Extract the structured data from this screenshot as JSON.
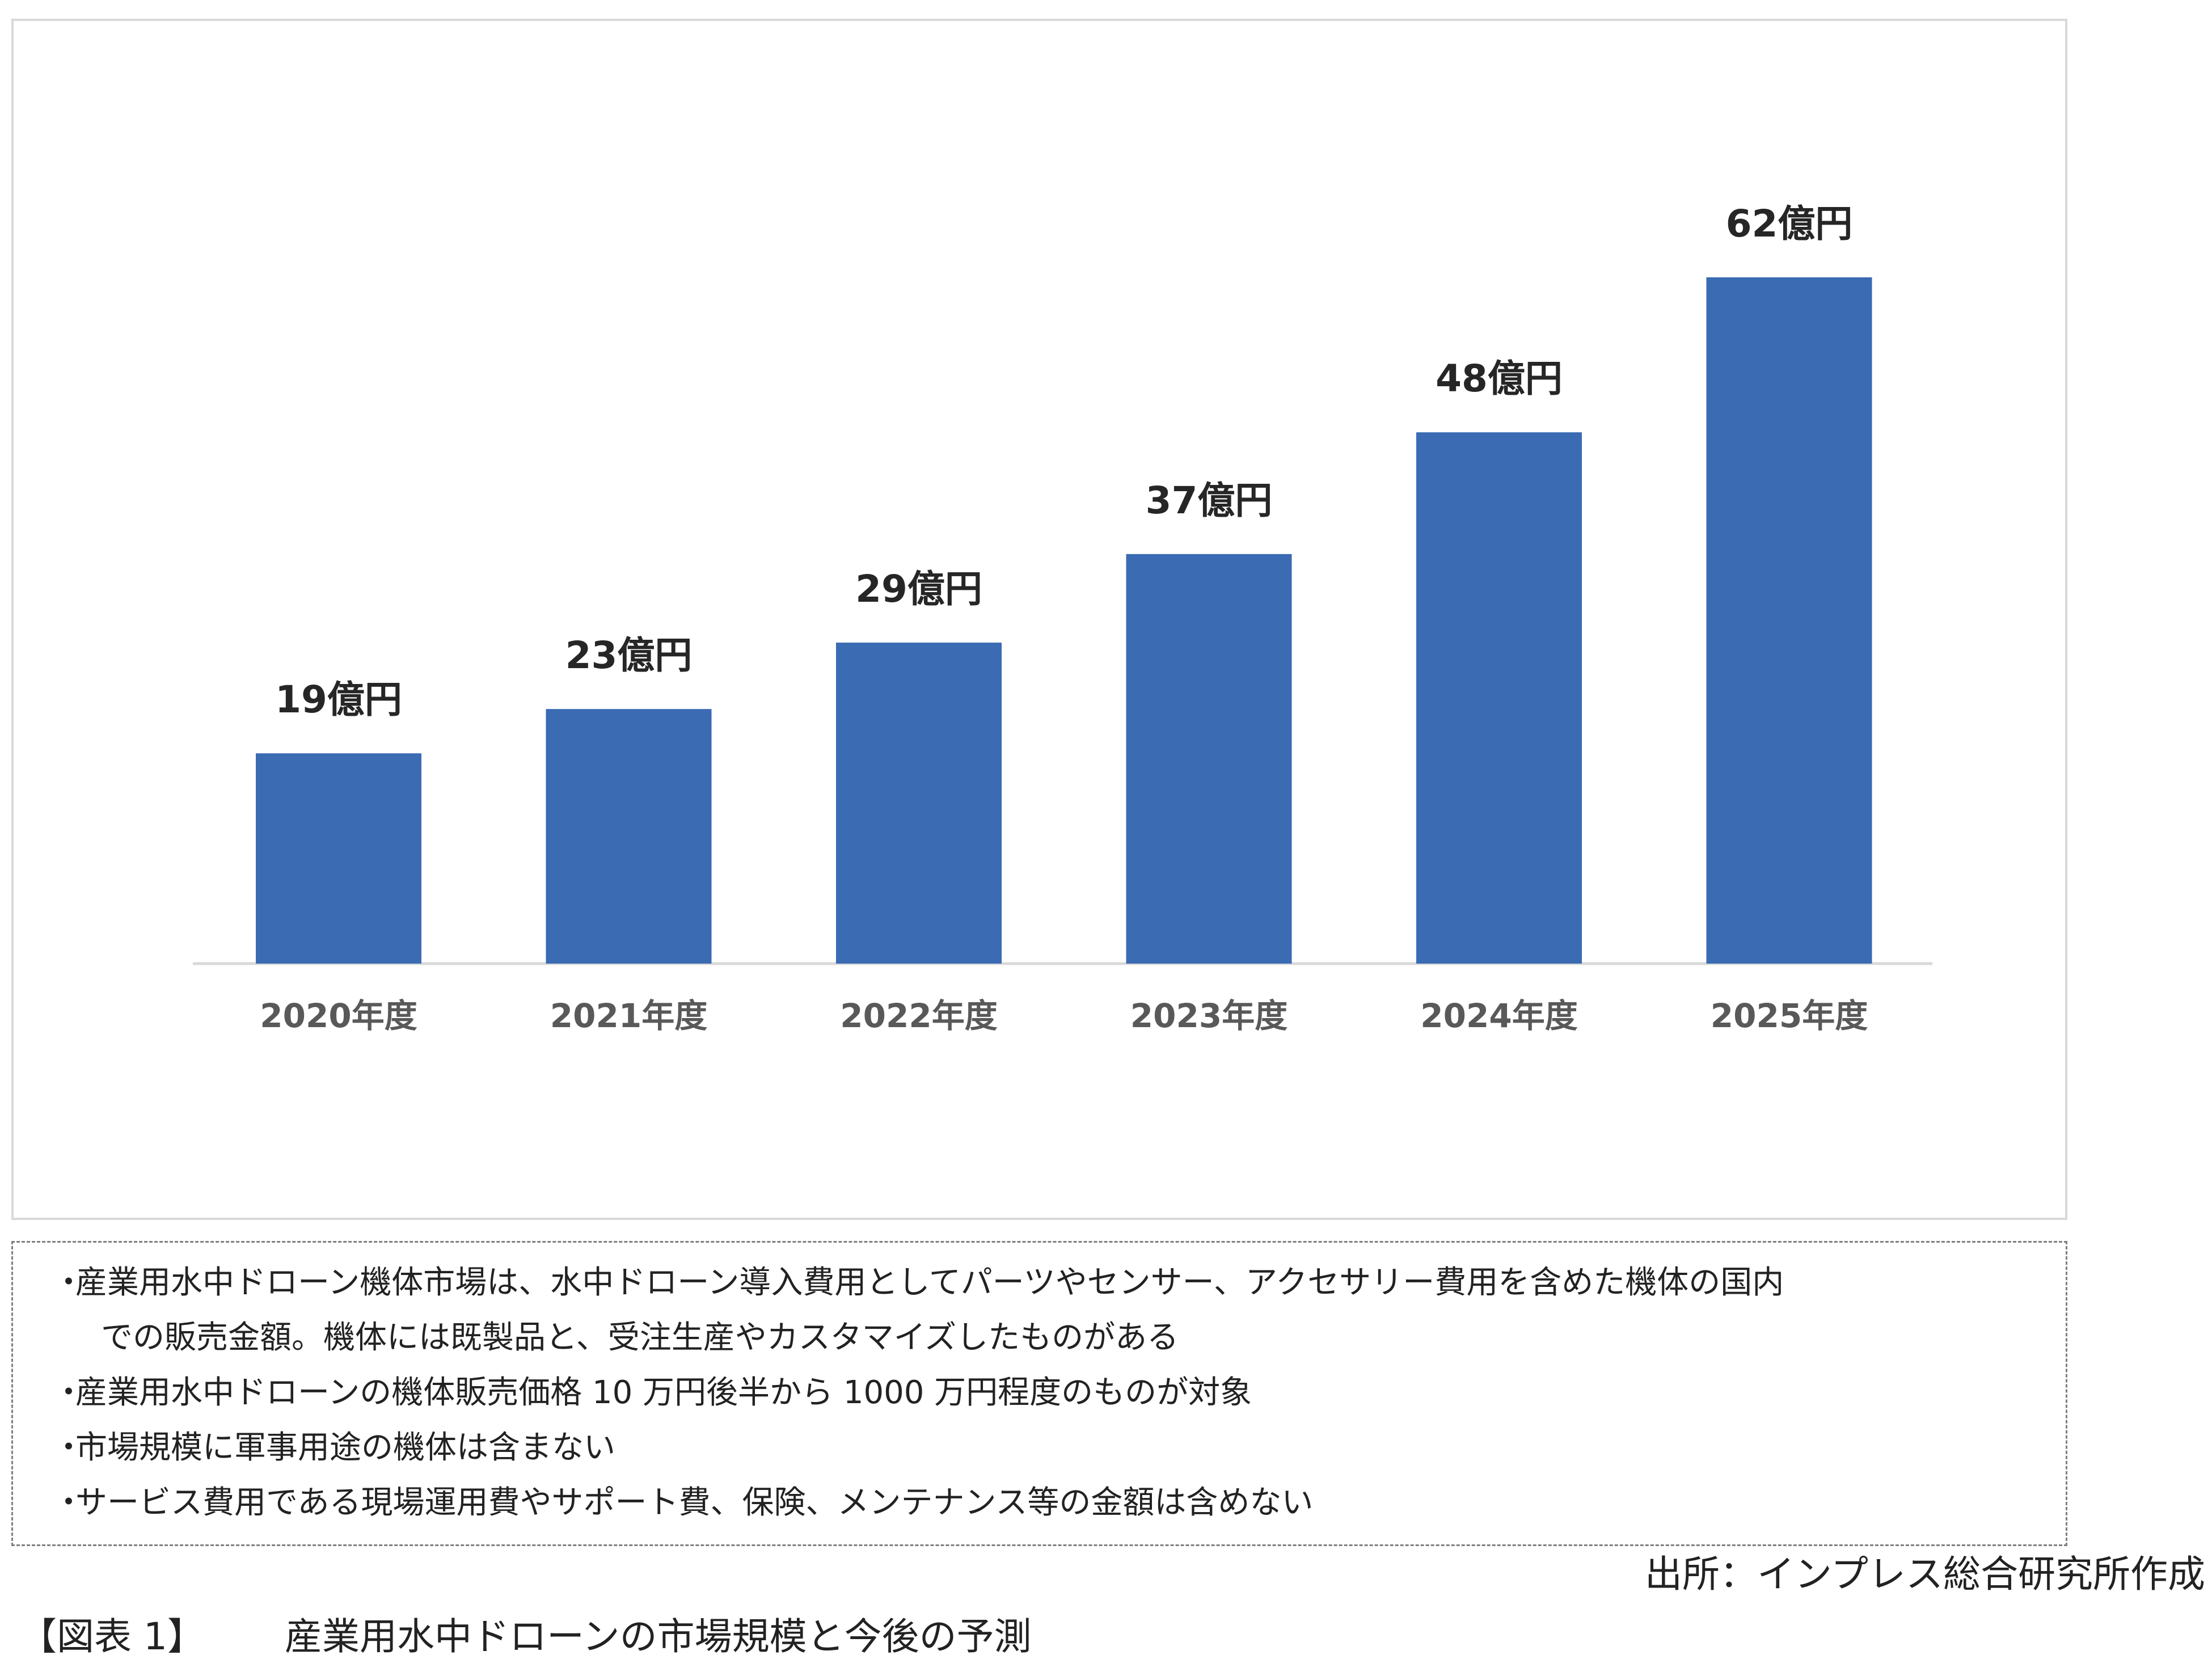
{
  "chart_data": {
    "type": "bar",
    "categories": [
      "2020年度",
      "2021年度",
      "2022年度",
      "2023年度",
      "2024年度",
      "2025年度"
    ],
    "values": [
      19,
      23,
      29,
      37,
      48,
      62
    ],
    "data_labels": [
      "19億円",
      "23億円",
      "29億円",
      "37億円",
      "48億円",
      "62億円"
    ],
    "unit": "億円",
    "title": "",
    "xlabel": "",
    "ylabel": "",
    "ylim": [
      0,
      70
    ],
    "grid": false,
    "legend": "none",
    "bar_color": "#3a6bb3"
  },
  "notes": {
    "bullet": "・",
    "items": [
      "産業用水中ドローン機体市場は、水中ドローン導入費用としてパーツやセンサー、アクセサリー費用を含めた機体の国内",
      "での販売金額。機体には既製品と、受注生産やカスタマイズしたものがある",
      "産業用水中ドローンの機体販売価格 10 万円後半から 1000 万円程度のものが対象",
      "市場規模に軍事用途の機体は含まない",
      "サービス費用である現場運用費やサポート費、保険、メンテナンス等の金額は含めない"
    ]
  },
  "source": "出所：インプレス総合研究所作成",
  "caption": {
    "number": "【図表 1】",
    "title": "産業用水中ドローンの市場規模と今後の予測"
  }
}
